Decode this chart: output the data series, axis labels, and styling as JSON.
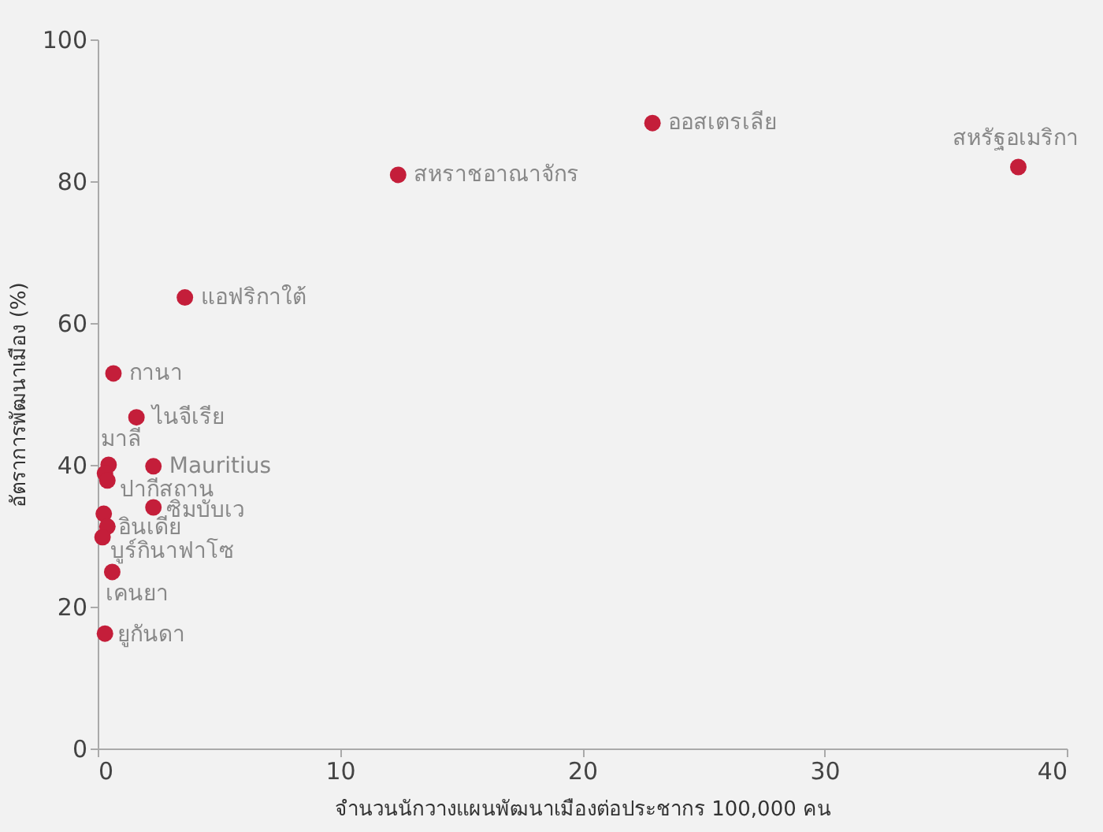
{
  "chart_data": {
    "type": "scatter",
    "xlabel": "จำนวนนักวางแผนพัฒนาเมืองต่อประชากร 100,000 คน",
    "ylabel": "อัตราการพัฒนาเมือง (%)",
    "x": [
      38.0,
      22.9,
      12.4,
      3.6,
      0.65,
      1.6,
      0.45,
      0.3,
      2.3,
      0.4,
      2.3,
      0.25,
      0.4,
      0.2,
      0.6,
      0.3
    ],
    "series": [
      {
        "color": "#c41e3a",
        "values": [
          82.0,
          88.2,
          80.9,
          63.6,
          52.9,
          46.7,
          40.0,
          38.8,
          39.8,
          37.8,
          34.0,
          33.1,
          31.3,
          29.8,
          24.9,
          16.2
        ]
      }
    ],
    "marker": "circle",
    "xlim": [
      0,
      40
    ],
    "xticks": [
      0,
      10,
      20,
      30,
      40
    ],
    "ylim": [
      0,
      100
    ],
    "yticks": [
      0,
      20,
      40,
      60,
      80,
      100
    ],
    "annotations": [
      {
        "text": "สหรัฐอเมริกา",
        "x": 38.0,
        "y": 82.0
      },
      {
        "text": "ออสเตรเลีย",
        "x": 22.9,
        "y": 88.2
      },
      {
        "text": "สหราชอาณาจักร",
        "x": 12.4,
        "y": 80.9
      },
      {
        "text": "แอฟริกาใต้",
        "x": 3.6,
        "y": 63.6
      },
      {
        "text": "กานา",
        "x": 0.65,
        "y": 52.9
      },
      {
        "text": "ไนจีเรีย",
        "x": 1.6,
        "y": 46.7
      },
      {
        "text": "มาลี",
        "x": 0.45,
        "y": 40.0
      },
      {
        "text": "Mauritius",
        "x": 2.3,
        "y": 39.8
      },
      {
        "text": "ปากีสถาน",
        "x": 0.4,
        "y": 37.8
      },
      {
        "text": "ซิมบับเว",
        "x": 2.3,
        "y": 34.0
      },
      {
        "text": "อินเดีย",
        "x": 0.4,
        "y": 31.3
      },
      {
        "text": "บูร์กินาฟาโซ",
        "x": 0.2,
        "y": 29.8
      },
      {
        "text": "เคนยา",
        "x": 0.6,
        "y": 24.9
      },
      {
        "text": "ยูกันดา",
        "x": 0.3,
        "y": 16.2
      }
    ]
  }
}
